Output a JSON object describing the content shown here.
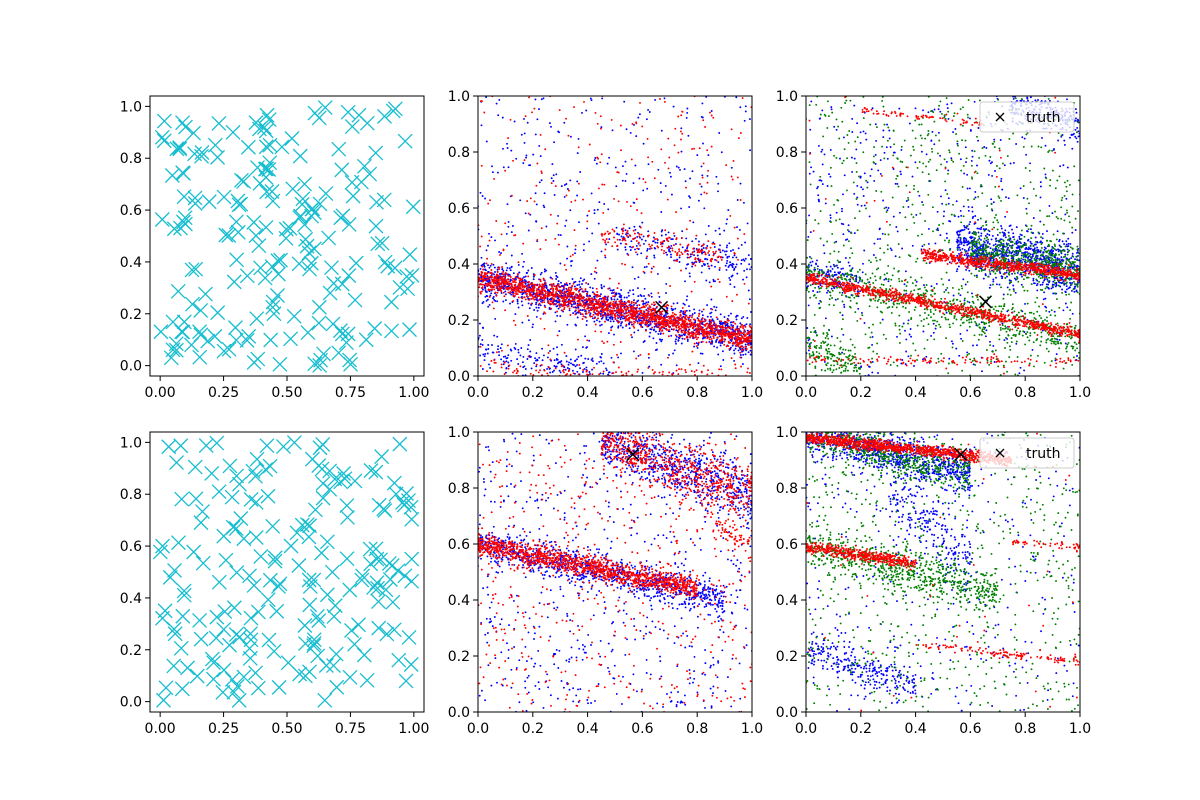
{
  "figure": {
    "background": "#ffffff",
    "truth_color": "#000000"
  },
  "chart_data": [
    {
      "id": "top-left",
      "type": "scatter",
      "marker": "x",
      "color": "#17becf",
      "xlim": [
        -0.04,
        1.04
      ],
      "ylim": [
        -0.04,
        1.04
      ],
      "xticks": [
        0.0,
        0.25,
        0.5,
        0.75,
        1.0
      ],
      "xtick_labels": [
        "0.00",
        "0.25",
        "0.50",
        "0.75",
        "1.00"
      ],
      "yticks": [
        0.0,
        0.2,
        0.4,
        0.6,
        0.8,
        1.0
      ],
      "ytick_labels": [
        "0.0",
        "0.2",
        "0.4",
        "0.6",
        "0.8",
        "1.0"
      ],
      "n_points": 200,
      "seed": 11,
      "description": "uniform random scatter of x markers over [0,1]x[0,1]"
    },
    {
      "id": "top-middle",
      "type": "scatter",
      "marker": "dot",
      "xlim": [
        0,
        1
      ],
      "ylim": [
        0,
        1
      ],
      "xticks": [
        0.0,
        0.2,
        0.4,
        0.6,
        0.8,
        1.0
      ],
      "xtick_labels": [
        "0.0",
        "0.2",
        "0.4",
        "0.6",
        "0.8",
        "1.0"
      ],
      "yticks": [
        0.0,
        0.2,
        0.4,
        0.6,
        0.8,
        1.0
      ],
      "ytick_labels": [
        "0.0",
        "0.2",
        "0.4",
        "0.6",
        "0.8",
        "1.0"
      ],
      "truth": {
        "x": 0.67,
        "y": 0.245
      },
      "series": [
        {
          "color": "#0000ff",
          "bands": [
            {
              "x0": 0.0,
              "y0": 0.35,
              "x1": 1.0,
              "y1": 0.13,
              "spread": 0.035,
              "n": 1400
            },
            {
              "x0": 0.0,
              "y0": 0.09,
              "x1": 0.5,
              "y1": 0.0,
              "spread": 0.035,
              "n": 180
            },
            {
              "x0": 0.5,
              "y0": 0.51,
              "x1": 1.0,
              "y1": 0.38,
              "spread": 0.03,
              "n": 200
            }
          ],
          "uniform": 420
        },
        {
          "color": "#ff0000",
          "bands": [
            {
              "x0": 0.0,
              "y0": 0.35,
              "x1": 1.0,
              "y1": 0.13,
              "spread": 0.022,
              "n": 1700
            },
            {
              "x0": 0.0,
              "y0": 0.02,
              "x1": 1.0,
              "y1": 0.0,
              "spread": 0.015,
              "n": 120
            },
            {
              "x0": 0.45,
              "y0": 0.5,
              "x1": 0.9,
              "y1": 0.43,
              "spread": 0.025,
              "n": 150
            }
          ],
          "uniform": 300
        }
      ]
    },
    {
      "id": "top-right",
      "type": "scatter",
      "marker": "dot",
      "xlim": [
        0,
        1
      ],
      "ylim": [
        0,
        1
      ],
      "xticks": [
        0.0,
        0.2,
        0.4,
        0.6,
        0.8,
        1.0
      ],
      "xtick_labels": [
        "0.0",
        "0.2",
        "0.4",
        "0.6",
        "0.8",
        "1.0"
      ],
      "yticks": [
        0.0,
        0.2,
        0.4,
        0.6,
        0.8,
        1.0
      ],
      "ytick_labels": [
        "0.0",
        "0.2",
        "0.4",
        "0.6",
        "0.8",
        "1.0"
      ],
      "truth": {
        "x": 0.655,
        "y": 0.265
      },
      "legend": {
        "label": "truth",
        "position": "upper right"
      },
      "series": [
        {
          "color": "#0000ff",
          "bands": [
            {
              "x0": 0.55,
              "y0": 0.47,
              "x1": 1.0,
              "y1": 0.37,
              "spread": 0.05,
              "n": 900
            },
            {
              "x0": 0.75,
              "y0": 0.97,
              "x1": 1.0,
              "y1": 0.9,
              "spread": 0.03,
              "n": 200
            },
            {
              "x0": 0.0,
              "y0": 0.37,
              "x1": 0.2,
              "y1": 0.33,
              "spread": 0.03,
              "n": 120
            }
          ],
          "uniform": 550
        },
        {
          "color": "#008000",
          "bands": [
            {
              "x0": 0.0,
              "y0": 0.36,
              "x1": 1.0,
              "y1": 0.13,
              "spread": 0.035,
              "n": 600
            },
            {
              "x0": 0.0,
              "y0": 0.1,
              "x1": 0.2,
              "y1": 0.03,
              "spread": 0.03,
              "n": 150
            },
            {
              "x0": 0.6,
              "y0": 0.45,
              "x1": 1.0,
              "y1": 0.38,
              "spread": 0.04,
              "n": 500
            }
          ],
          "uniform": 700
        },
        {
          "color": "#ff0000",
          "bands": [
            {
              "x0": 0.0,
              "y0": 0.35,
              "x1": 1.0,
              "y1": 0.15,
              "spread": 0.01,
              "n": 900
            },
            {
              "x0": 0.42,
              "y0": 0.435,
              "x1": 1.0,
              "y1": 0.36,
              "spread": 0.01,
              "n": 650
            },
            {
              "x0": 0.0,
              "y0": 0.06,
              "x1": 1.0,
              "y1": 0.05,
              "spread": 0.008,
              "n": 120
            },
            {
              "x0": 0.2,
              "y0": 0.95,
              "x1": 0.65,
              "y1": 0.9,
              "spread": 0.006,
              "n": 70
            }
          ],
          "uniform": 45
        }
      ]
    },
    {
      "id": "bottom-left",
      "type": "scatter",
      "marker": "x",
      "color": "#17becf",
      "xlim": [
        -0.04,
        1.04
      ],
      "ylim": [
        -0.04,
        1.04
      ],
      "xticks": [
        0.0,
        0.25,
        0.5,
        0.75,
        1.0
      ],
      "xtick_labels": [
        "0.00",
        "0.25",
        "0.50",
        "0.75",
        "1.00"
      ],
      "yticks": [
        0.0,
        0.2,
        0.4,
        0.6,
        0.8,
        1.0
      ],
      "ytick_labels": [
        "0.0",
        "0.2",
        "0.4",
        "0.6",
        "0.8",
        "1.0"
      ],
      "n_points": 200,
      "seed": 29,
      "description": "uniform random scatter of x markers over [0,1]x[0,1]"
    },
    {
      "id": "bottom-middle",
      "type": "scatter",
      "marker": "dot",
      "xlim": [
        0,
        1
      ],
      "ylim": [
        0,
        1
      ],
      "xticks": [
        0.0,
        0.2,
        0.4,
        0.6,
        0.8,
        1.0
      ],
      "xtick_labels": [
        "0.0",
        "0.2",
        "0.4",
        "0.6",
        "0.8",
        "1.0"
      ],
      "yticks": [
        0.0,
        0.2,
        0.4,
        0.6,
        0.8,
        1.0
      ],
      "ytick_labels": [
        "0.0",
        "0.2",
        "0.4",
        "0.6",
        "0.8",
        "1.0"
      ],
      "truth": {
        "x": 0.565,
        "y": 0.92
      },
      "series": [
        {
          "color": "#0000ff",
          "bands": [
            {
              "x0": 0.0,
              "y0": 0.6,
              "x1": 0.9,
              "y1": 0.4,
              "spread": 0.03,
              "n": 900
            },
            {
              "x0": 0.45,
              "y0": 0.97,
              "x1": 1.0,
              "y1": 0.78,
              "spread": 0.05,
              "n": 650
            }
          ],
          "uniform": 600
        },
        {
          "color": "#ff0000",
          "bands": [
            {
              "x0": 0.0,
              "y0": 0.6,
              "x1": 0.8,
              "y1": 0.44,
              "spread": 0.02,
              "n": 1200
            },
            {
              "x0": 0.45,
              "y0": 0.97,
              "x1": 1.0,
              "y1": 0.78,
              "spread": 0.05,
              "n": 650
            },
            {
              "x0": 0.85,
              "y0": 0.68,
              "x1": 1.0,
              "y1": 0.6,
              "spread": 0.02,
              "n": 60
            }
          ],
          "uniform": 500
        }
      ]
    },
    {
      "id": "bottom-right",
      "type": "scatter",
      "marker": "dot",
      "xlim": [
        0,
        1
      ],
      "ylim": [
        0,
        1
      ],
      "xticks": [
        0.0,
        0.2,
        0.4,
        0.6,
        0.8,
        1.0
      ],
      "xtick_labels": [
        "0.0",
        "0.2",
        "0.4",
        "0.6",
        "0.8",
        "1.0"
      ],
      "yticks": [
        0.0,
        0.2,
        0.4,
        0.6,
        0.8,
        1.0
      ],
      "ytick_labels": [
        "0.0",
        "0.2",
        "0.4",
        "0.6",
        "0.8",
        "1.0"
      ],
      "truth": {
        "x": 0.565,
        "y": 0.92
      },
      "legend": {
        "label": "truth",
        "position": "upper right"
      },
      "series": [
        {
          "color": "#0000ff",
          "bands": [
            {
              "x0": 0.0,
              "y0": 1.0,
              "x1": 0.6,
              "y1": 0.85,
              "spread": 0.04,
              "n": 900
            },
            {
              "x0": 0.0,
              "y0": 0.22,
              "x1": 0.4,
              "y1": 0.1,
              "spread": 0.03,
              "n": 250
            },
            {
              "x0": 0.3,
              "y0": 0.75,
              "x1": 0.6,
              "y1": 0.55,
              "spread": 0.06,
              "n": 200
            }
          ],
          "uniform": 350
        },
        {
          "color": "#008000",
          "bands": [
            {
              "x0": 0.0,
              "y0": 1.0,
              "x1": 0.6,
              "y1": 0.85,
              "spread": 0.04,
              "n": 550
            },
            {
              "x0": 0.0,
              "y0": 0.6,
              "x1": 0.7,
              "y1": 0.42,
              "spread": 0.04,
              "n": 650
            }
          ],
          "uniform": 650
        },
        {
          "color": "#ff0000",
          "bands": [
            {
              "x0": 0.0,
              "y0": 0.98,
              "x1": 0.75,
              "y1": 0.9,
              "spread": 0.01,
              "n": 1000
            },
            {
              "x0": 0.0,
              "y0": 0.59,
              "x1": 0.4,
              "y1": 0.53,
              "spread": 0.01,
              "n": 450
            },
            {
              "x0": 0.4,
              "y0": 0.24,
              "x1": 1.0,
              "y1": 0.18,
              "spread": 0.007,
              "n": 120
            },
            {
              "x0": 0.75,
              "y0": 0.61,
              "x1": 1.0,
              "y1": 0.59,
              "spread": 0.006,
              "n": 50
            }
          ],
          "uniform": 40
        }
      ]
    }
  ]
}
